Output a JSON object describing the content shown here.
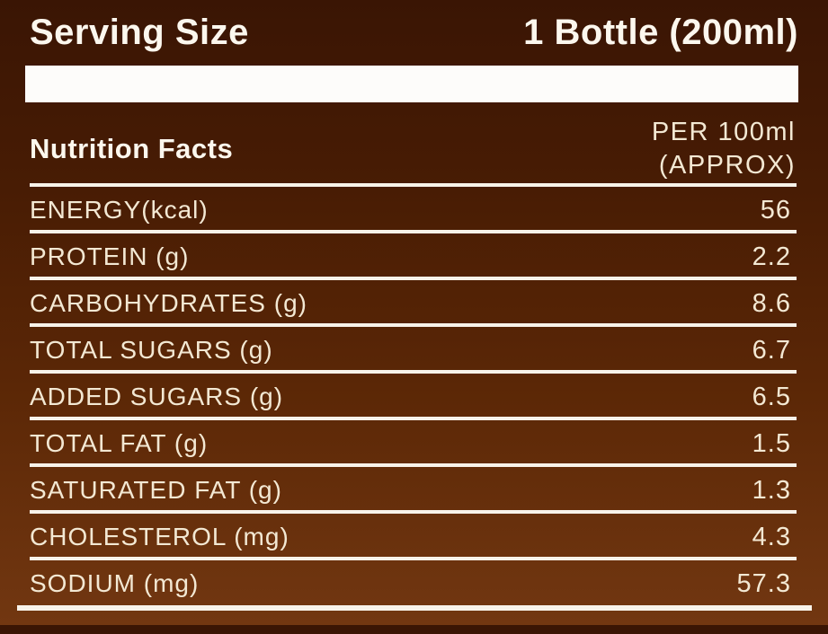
{
  "header": {
    "serving_size_label": "Serving Size",
    "serving_size_value": "1 Bottle (200ml)"
  },
  "table": {
    "title": "Nutrition Facts",
    "column_header": {
      "line1": "PER 100ml",
      "line2": "(APPROX)"
    },
    "rows": [
      {
        "label": "ENERGY(kcal)",
        "value": "56"
      },
      {
        "label": "PROTEIN (g)",
        "value": "2.2"
      },
      {
        "label": "CARBOHYDRATES (g)",
        "value": "8.6"
      },
      {
        "label": "TOTAL SUGARS (g)",
        "value": "6.7"
      },
      {
        "label": "ADDED SUGARS (g)",
        "value": "6.5"
      },
      {
        "label": "TOTAL FAT (g)",
        "value": "1.5"
      },
      {
        "label": "SATURATED FAT (g)",
        "value": "1.3"
      },
      {
        "label": "CHOLESTEROL (mg)",
        "value": "4.3"
      },
      {
        "label": "SODIUM (mg)",
        "value": "57.3"
      }
    ]
  },
  "colors": {
    "background_top": "#3a1504",
    "background_bottom": "#723711",
    "header_text": "#fcf7ee",
    "body_text": "#f3e8d3",
    "rule_white": "#f8f3ea",
    "bar_white": "#fdfcfa"
  }
}
